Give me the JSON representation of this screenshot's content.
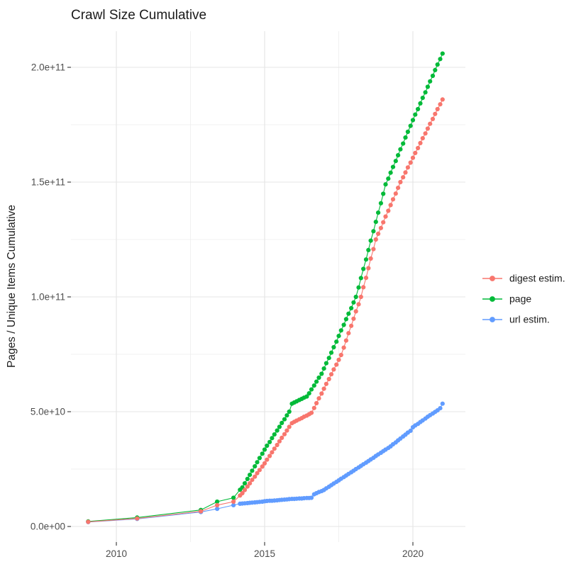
{
  "title": "Crawl Size Cumulative",
  "y_axis": {
    "label": "Pages / Unique Items Cumulative",
    "ticks": [
      {
        "label": "0.0e+00",
        "value_billions": 0
      },
      {
        "label": "5.0e+10",
        "value_billions": 50
      },
      {
        "label": "1.0e+11",
        "value_billions": 100
      },
      {
        "label": "1.5e+11",
        "value_billions": 150
      },
      {
        "label": "2.0e+11",
        "value_billions": 200
      }
    ],
    "minor_values_billions": [
      25,
      75,
      125,
      175
    ]
  },
  "x_axis": {
    "ticks": [
      {
        "label": "2010",
        "year": 2010
      },
      {
        "label": "2015",
        "year": 2015
      },
      {
        "label": "2020",
        "year": 2020
      }
    ],
    "minor_years": [
      2012.5,
      2017.5
    ]
  },
  "legend": {
    "items": [
      {
        "label": "digest estim.",
        "color": "#F8766D"
      },
      {
        "label": "page",
        "color": "#00BA38"
      },
      {
        "label": "url estim.",
        "color": "#619CFF"
      }
    ]
  },
  "chart_data": {
    "type": "scatter",
    "title": "Crawl Size Cumulative",
    "xlabel": "",
    "ylabel": "Pages / Unique Items Cumulative",
    "x_unit": "year (decimal)",
    "y_unit": "items, stored in billions (1e9)",
    "xlim": [
      2008.5,
      2021.6
    ],
    "ylim_billions": [
      0,
      216
    ],
    "grid": "on",
    "legend_position": "right",
    "draw_order": [
      "page",
      "url estim.",
      "digest estim."
    ],
    "series": [
      {
        "name": "digest estim.",
        "color": "#F8766D",
        "points": [
          [
            2009.05,
            2.0
          ],
          [
            2010.7,
            3.5
          ],
          [
            2012.85,
            6.6
          ],
          [
            2013.4,
            9.3
          ],
          [
            2013.95,
            10.8
          ],
          [
            2014.17,
            13.5
          ],
          [
            2014.25,
            14.5
          ],
          [
            2014.33,
            15.9
          ],
          [
            2014.42,
            17.4
          ],
          [
            2014.5,
            18.8
          ],
          [
            2014.58,
            20.3
          ],
          [
            2014.67,
            21.7
          ],
          [
            2014.75,
            23.2
          ],
          [
            2014.83,
            24.6
          ],
          [
            2014.92,
            26.1
          ],
          [
            2015.0,
            27.5
          ],
          [
            2015.08,
            29.1
          ],
          [
            2015.17,
            30.7
          ],
          [
            2015.25,
            32.3
          ],
          [
            2015.33,
            33.9
          ],
          [
            2015.42,
            35.5
          ],
          [
            2015.5,
            37.1
          ],
          [
            2015.58,
            38.6
          ],
          [
            2015.67,
            40.2
          ],
          [
            2015.75,
            41.8
          ],
          [
            2015.83,
            43.4
          ],
          [
            2015.92,
            45.0
          ],
          [
            2016.0,
            45.6
          ],
          [
            2016.08,
            46.1
          ],
          [
            2016.17,
            46.7
          ],
          [
            2016.25,
            47.2
          ],
          [
            2016.33,
            47.8
          ],
          [
            2016.42,
            48.3
          ],
          [
            2016.5,
            48.9
          ],
          [
            2016.58,
            49.5
          ],
          [
            2016.67,
            51.6
          ],
          [
            2016.75,
            53.7
          ],
          [
            2016.83,
            55.8
          ],
          [
            2016.92,
            57.9
          ],
          [
            2017.0,
            60.0
          ],
          [
            2017.08,
            62.1
          ],
          [
            2017.17,
            64.2
          ],
          [
            2017.25,
            66.3
          ],
          [
            2017.33,
            68.4
          ],
          [
            2017.42,
            70.5
          ],
          [
            2017.5,
            72.6
          ],
          [
            2017.58,
            74.7
          ],
          [
            2017.67,
            77.9
          ],
          [
            2017.75,
            81.0
          ],
          [
            2017.83,
            84.2
          ],
          [
            2017.92,
            87.4
          ],
          [
            2018.0,
            90.5
          ],
          [
            2018.08,
            93.7
          ],
          [
            2018.17,
            96.8
          ],
          [
            2018.25,
            100.0
          ],
          [
            2018.33,
            104.2
          ],
          [
            2018.42,
            108.3
          ],
          [
            2018.5,
            112.5
          ],
          [
            2018.58,
            116.7
          ],
          [
            2018.67,
            120.8
          ],
          [
            2018.75,
            125.0
          ],
          [
            2018.83,
            127.5
          ],
          [
            2018.92,
            130.0
          ],
          [
            2019.0,
            132.5
          ],
          [
            2019.08,
            135.0
          ],
          [
            2019.17,
            137.5
          ],
          [
            2019.25,
            140.0
          ],
          [
            2019.33,
            142.5
          ],
          [
            2019.42,
            145.0
          ],
          [
            2019.5,
            147.5
          ],
          [
            2019.58,
            150.0
          ],
          [
            2019.67,
            152.1
          ],
          [
            2019.75,
            154.2
          ],
          [
            2019.83,
            156.4
          ],
          [
            2019.92,
            158.5
          ],
          [
            2020.0,
            160.6
          ],
          [
            2020.08,
            162.7
          ],
          [
            2020.17,
            164.8
          ],
          [
            2020.25,
            167.0
          ],
          [
            2020.33,
            169.1
          ],
          [
            2020.42,
            171.2
          ],
          [
            2020.5,
            173.3
          ],
          [
            2020.58,
            175.4
          ],
          [
            2020.67,
            177.5
          ],
          [
            2020.75,
            179.7
          ],
          [
            2020.83,
            181.8
          ],
          [
            2020.92,
            183.9
          ],
          [
            2021.0,
            186.0
          ]
        ]
      },
      {
        "name": "page",
        "color": "#00BA38",
        "points": [
          [
            2009.05,
            2.2
          ],
          [
            2010.7,
            3.9
          ],
          [
            2012.85,
            7.2
          ],
          [
            2013.4,
            10.8
          ],
          [
            2013.95,
            12.5
          ],
          [
            2014.17,
            16.0
          ],
          [
            2014.25,
            17.0
          ],
          [
            2014.33,
            18.8
          ],
          [
            2014.42,
            20.7
          ],
          [
            2014.5,
            22.5
          ],
          [
            2014.58,
            24.3
          ],
          [
            2014.67,
            26.2
          ],
          [
            2014.75,
            28.0
          ],
          [
            2014.83,
            29.8
          ],
          [
            2014.92,
            31.7
          ],
          [
            2015.0,
            33.5
          ],
          [
            2015.08,
            35.2
          ],
          [
            2015.17,
            36.8
          ],
          [
            2015.25,
            38.5
          ],
          [
            2015.33,
            40.1
          ],
          [
            2015.42,
            41.8
          ],
          [
            2015.5,
            43.4
          ],
          [
            2015.58,
            45.1
          ],
          [
            2015.67,
            46.7
          ],
          [
            2015.75,
            48.4
          ],
          [
            2015.83,
            50.0
          ],
          [
            2015.92,
            53.5
          ],
          [
            2016.0,
            54.0
          ],
          [
            2016.08,
            54.5
          ],
          [
            2016.17,
            55.1
          ],
          [
            2016.25,
            55.6
          ],
          [
            2016.33,
            56.1
          ],
          [
            2016.42,
            56.6
          ],
          [
            2016.5,
            58.0
          ],
          [
            2016.58,
            59.7
          ],
          [
            2016.67,
            61.4
          ],
          [
            2016.75,
            63.1
          ],
          [
            2016.83,
            64.8
          ],
          [
            2016.92,
            66.5
          ],
          [
            2017.0,
            68.8
          ],
          [
            2017.08,
            71.1
          ],
          [
            2017.17,
            73.4
          ],
          [
            2017.25,
            75.7
          ],
          [
            2017.33,
            78.1
          ],
          [
            2017.42,
            80.5
          ],
          [
            2017.5,
            83.0
          ],
          [
            2017.58,
            85.4
          ],
          [
            2017.67,
            87.8
          ],
          [
            2017.75,
            90.3
          ],
          [
            2017.83,
            92.7
          ],
          [
            2017.92,
            95.1
          ],
          [
            2018.0,
            97.6
          ],
          [
            2018.08,
            100.0
          ],
          [
            2018.17,
            104.1
          ],
          [
            2018.25,
            108.2
          ],
          [
            2018.33,
            112.2
          ],
          [
            2018.42,
            116.3
          ],
          [
            2018.5,
            120.4
          ],
          [
            2018.58,
            124.5
          ],
          [
            2018.67,
            128.6
          ],
          [
            2018.75,
            132.7
          ],
          [
            2018.83,
            136.7
          ],
          [
            2018.92,
            140.8
          ],
          [
            2019.0,
            144.9
          ],
          [
            2019.08,
            149.0
          ],
          [
            2019.17,
            151.5
          ],
          [
            2019.25,
            154.1
          ],
          [
            2019.33,
            156.6
          ],
          [
            2019.42,
            159.2
          ],
          [
            2019.5,
            161.7
          ],
          [
            2019.58,
            164.3
          ],
          [
            2019.67,
            166.8
          ],
          [
            2019.75,
            169.4
          ],
          [
            2019.83,
            171.9
          ],
          [
            2019.92,
            174.5
          ],
          [
            2020.0,
            177.0
          ],
          [
            2020.08,
            179.4
          ],
          [
            2020.17,
            181.8
          ],
          [
            2020.25,
            184.3
          ],
          [
            2020.33,
            186.7
          ],
          [
            2020.42,
            189.1
          ],
          [
            2020.5,
            191.5
          ],
          [
            2020.58,
            193.9
          ],
          [
            2020.67,
            196.3
          ],
          [
            2020.75,
            198.8
          ],
          [
            2020.83,
            201.2
          ],
          [
            2020.92,
            203.6
          ],
          [
            2021.0,
            206.0
          ]
        ]
      },
      {
        "name": "url estim.",
        "color": "#619CFF",
        "points": [
          [
            2009.05,
            1.9
          ],
          [
            2010.7,
            3.3
          ],
          [
            2012.85,
            6.3
          ],
          [
            2013.4,
            7.7
          ],
          [
            2013.95,
            9.3
          ],
          [
            2014.17,
            9.9
          ],
          [
            2014.25,
            10.0
          ],
          [
            2014.33,
            10.1
          ],
          [
            2014.42,
            10.2
          ],
          [
            2014.5,
            10.3
          ],
          [
            2014.58,
            10.4
          ],
          [
            2014.67,
            10.5
          ],
          [
            2014.75,
            10.6
          ],
          [
            2014.83,
            10.7
          ],
          [
            2014.92,
            10.8
          ],
          [
            2015.0,
            11.0
          ],
          [
            2015.08,
            11.1
          ],
          [
            2015.17,
            11.2
          ],
          [
            2015.25,
            11.2
          ],
          [
            2015.33,
            11.3
          ],
          [
            2015.42,
            11.4
          ],
          [
            2015.5,
            11.5
          ],
          [
            2015.58,
            11.6
          ],
          [
            2015.67,
            11.7
          ],
          [
            2015.75,
            11.8
          ],
          [
            2015.83,
            11.9
          ],
          [
            2015.92,
            12.0
          ],
          [
            2016.0,
            12.0
          ],
          [
            2016.08,
            12.1
          ],
          [
            2016.17,
            12.2
          ],
          [
            2016.25,
            12.2
          ],
          [
            2016.33,
            12.3
          ],
          [
            2016.42,
            12.4
          ],
          [
            2016.5,
            12.4
          ],
          [
            2016.58,
            12.5
          ],
          [
            2016.67,
            14.0
          ],
          [
            2016.75,
            14.5
          ],
          [
            2016.83,
            15.0
          ],
          [
            2016.92,
            15.4
          ],
          [
            2017.0,
            15.9
          ],
          [
            2017.08,
            16.6
          ],
          [
            2017.17,
            17.3
          ],
          [
            2017.25,
            18.0
          ],
          [
            2017.33,
            18.7
          ],
          [
            2017.42,
            19.4
          ],
          [
            2017.5,
            20.1
          ],
          [
            2017.58,
            20.8
          ],
          [
            2017.67,
            21.5
          ],
          [
            2017.75,
            22.2
          ],
          [
            2017.83,
            22.9
          ],
          [
            2017.92,
            23.6
          ],
          [
            2018.0,
            24.3
          ],
          [
            2018.08,
            25.0
          ],
          [
            2018.17,
            25.7
          ],
          [
            2018.25,
            26.4
          ],
          [
            2018.33,
            27.1
          ],
          [
            2018.42,
            27.8
          ],
          [
            2018.5,
            28.5
          ],
          [
            2018.58,
            29.2
          ],
          [
            2018.67,
            29.9
          ],
          [
            2018.75,
            30.7
          ],
          [
            2018.83,
            31.4
          ],
          [
            2018.92,
            32.1
          ],
          [
            2019.0,
            32.8
          ],
          [
            2019.08,
            33.5
          ],
          [
            2019.17,
            34.2
          ],
          [
            2019.25,
            34.9
          ],
          [
            2019.33,
            35.8
          ],
          [
            2019.42,
            36.6
          ],
          [
            2019.5,
            37.5
          ],
          [
            2019.58,
            38.3
          ],
          [
            2019.67,
            39.2
          ],
          [
            2019.75,
            40.0
          ],
          [
            2019.83,
            40.9
          ],
          [
            2019.92,
            41.7
          ],
          [
            2020.0,
            43.2
          ],
          [
            2020.08,
            44.0
          ],
          [
            2020.17,
            44.7
          ],
          [
            2020.25,
            45.5
          ],
          [
            2020.33,
            46.2
          ],
          [
            2020.42,
            47.0
          ],
          [
            2020.5,
            47.8
          ],
          [
            2020.58,
            48.5
          ],
          [
            2020.67,
            49.2
          ],
          [
            2020.75,
            49.9
          ],
          [
            2020.83,
            50.6
          ],
          [
            2020.92,
            51.5
          ],
          [
            2021.0,
            53.5
          ]
        ]
      }
    ]
  }
}
